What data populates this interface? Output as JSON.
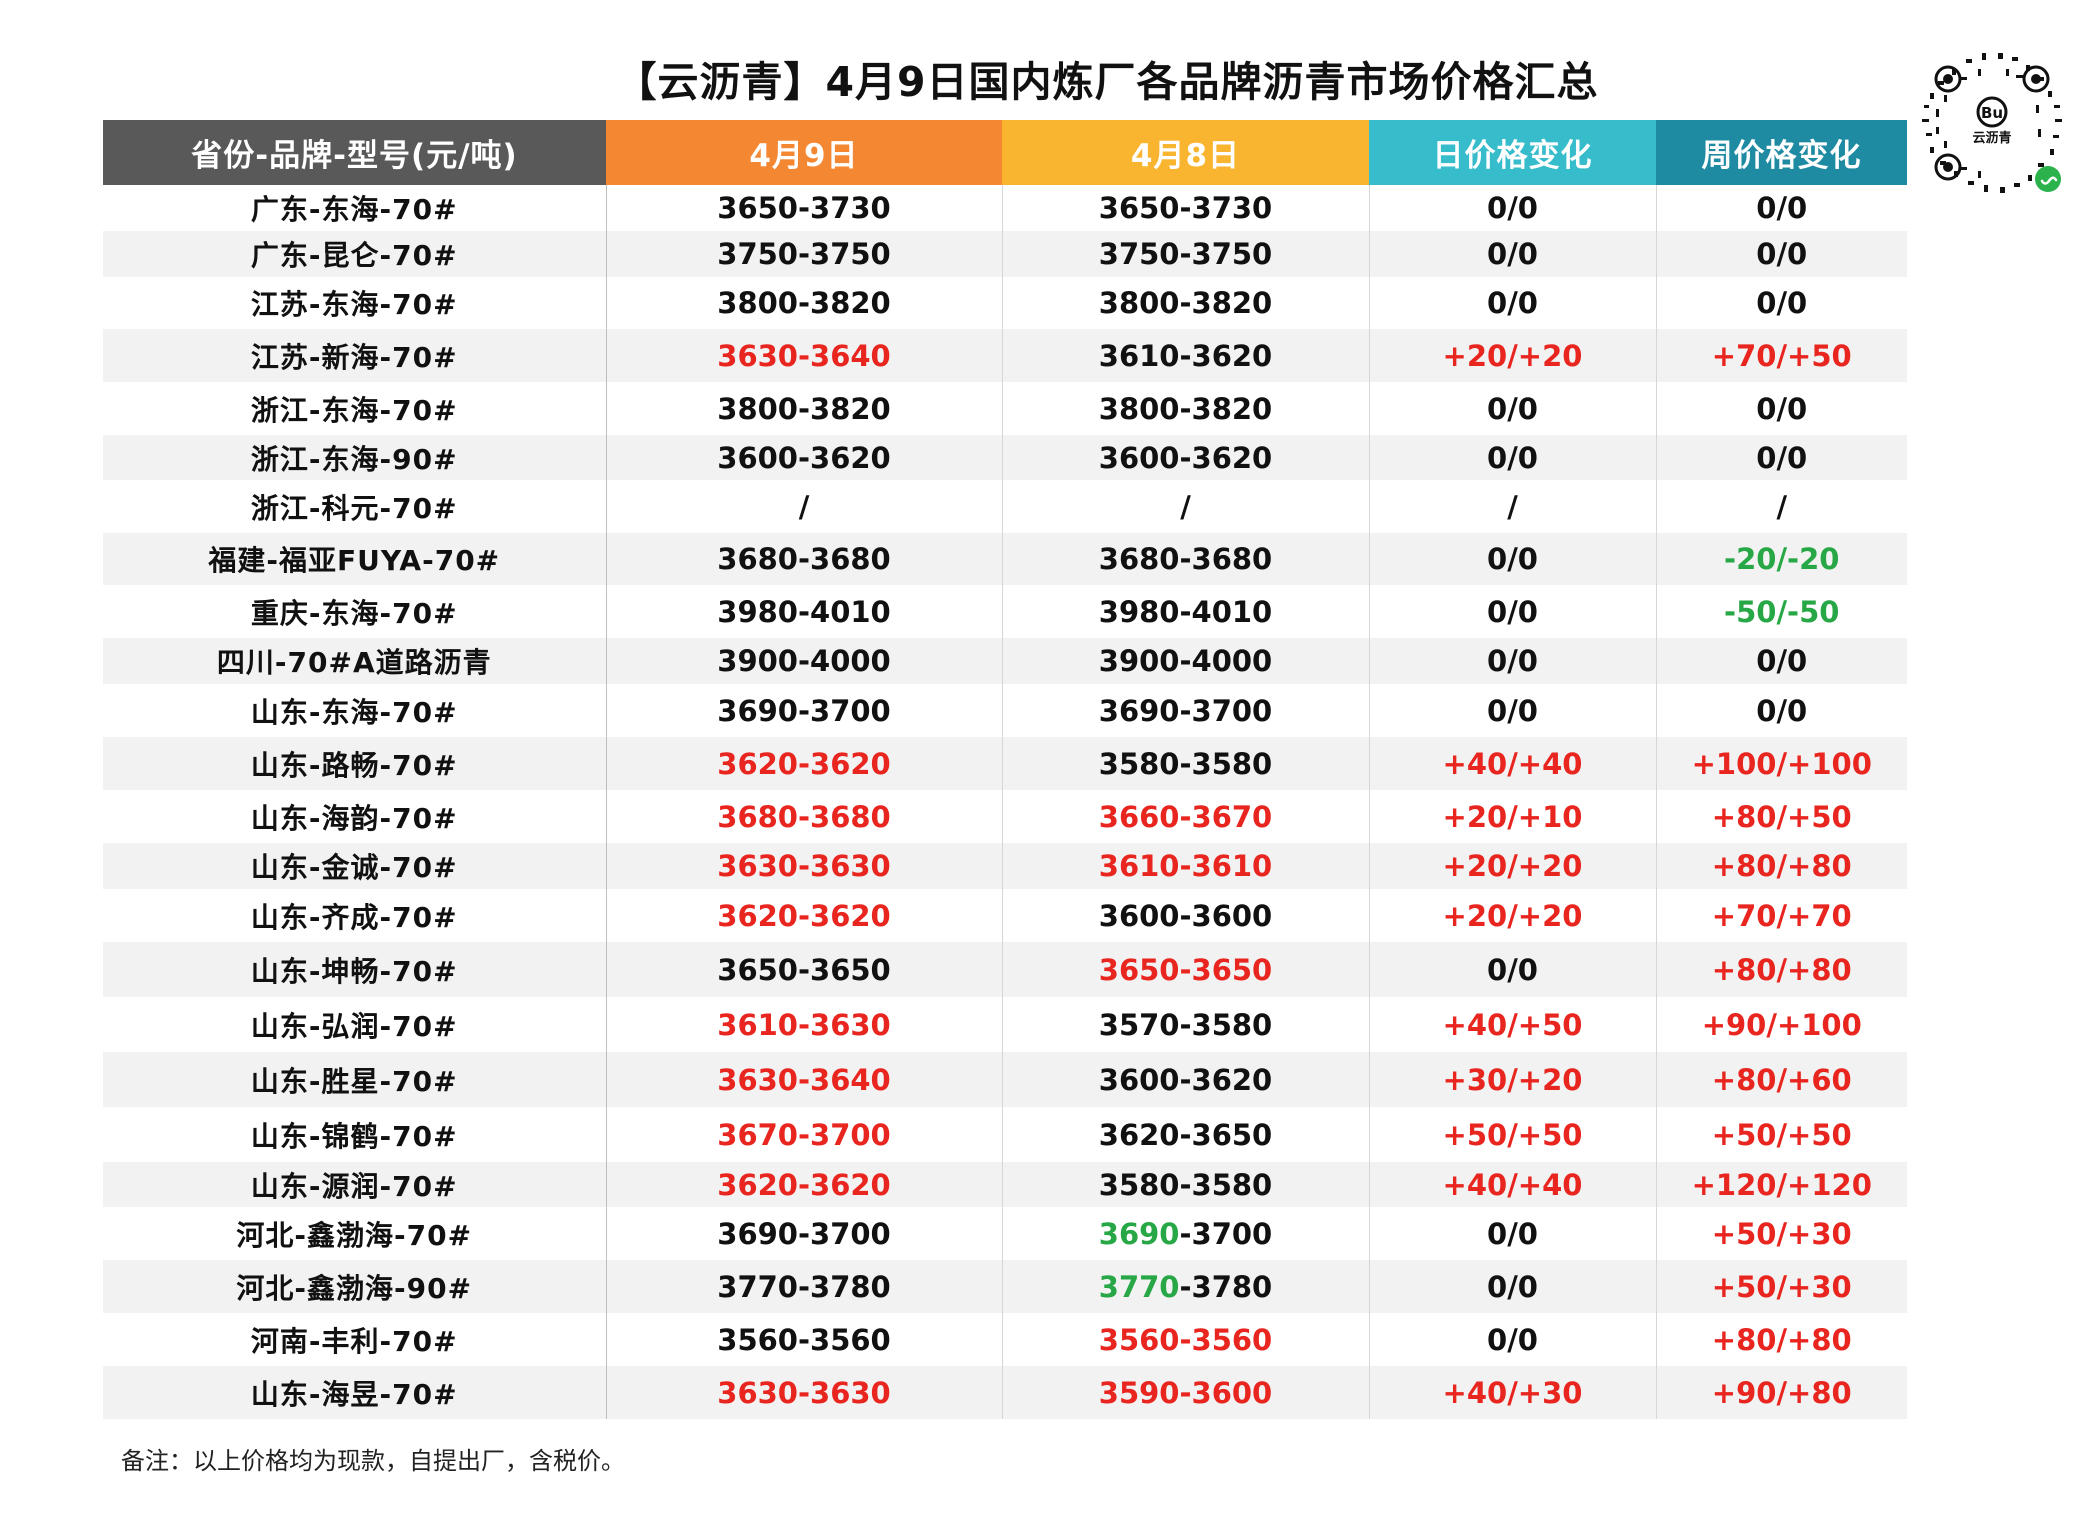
{
  "title": "【云沥青】4月9日国内炼厂各品牌沥青市场价格汇总",
  "qr": {
    "label": "云沥青",
    "logo_text": "Bu",
    "icon": "mini-program-icon"
  },
  "headers": [
    "省份-品牌-型号(元/吨)",
    "4月9日",
    "4月8日",
    "日价格变化",
    "周价格变化"
  ],
  "rows": [
    {
      "name": "广东-东海-70#",
      "d9": "3650-3730",
      "d9s": "",
      "d8": "3650-3730",
      "d8s": "",
      "d8lo": "",
      "d8hi": "",
      "day": "0/0",
      "days": "",
      "week": "0/0",
      "weeks": "",
      "h": 46
    },
    {
      "name": "广东-昆仑-70#",
      "d9": "3750-3750",
      "d9s": "",
      "d8": "3750-3750",
      "d8s": "",
      "d8lo": "",
      "d8hi": "",
      "day": "0/0",
      "days": "",
      "week": "0/0",
      "weeks": "",
      "h": 46
    },
    {
      "name": "江苏-东海-70#",
      "d9": "3800-3820",
      "d9s": "",
      "d8": "3800-3820",
      "d8s": "",
      "d8lo": "",
      "d8hi": "",
      "day": "0/0",
      "days": "",
      "week": "0/0",
      "weeks": "",
      "h": 52
    },
    {
      "name": "江苏-新海-70#",
      "d9": "3630-3640",
      "d9s": "up",
      "d8": "3610-3620",
      "d8s": "",
      "d8lo": "",
      "d8hi": "",
      "day": "+20/+20",
      "days": "up",
      "week": "+70/+50",
      "weeks": "up",
      "h": 53
    },
    {
      "name": "浙江-东海-70#",
      "d9": "3800-3820",
      "d9s": "",
      "d8": "3800-3820",
      "d8s": "",
      "d8lo": "",
      "d8hi": "",
      "day": "0/0",
      "days": "",
      "week": "0/0",
      "weeks": "",
      "h": 53
    },
    {
      "name": "浙江-东海-90#",
      "d9": "3600-3620",
      "d9s": "",
      "d8": "3600-3620",
      "d8s": "",
      "d8lo": "",
      "d8hi": "",
      "day": "0/0",
      "days": "",
      "week": "0/0",
      "weeks": "",
      "h": 45
    },
    {
      "name": "浙江-科元-70#",
      "d9": "/",
      "d9s": "",
      "d8": "/",
      "d8s": "",
      "d8lo": "",
      "d8hi": "",
      "day": "/",
      "days": "",
      "week": "/",
      "weeks": "",
      "h": 53
    },
    {
      "name": "福建-福亚FUYA-70#",
      "d9": "3680-3680",
      "d9s": "",
      "d8": "3680-3680",
      "d8s": "",
      "d8lo": "",
      "d8hi": "",
      "day": "0/0",
      "days": "",
      "week": "-20/-20",
      "weeks": "down",
      "h": 52
    },
    {
      "name": "重庆-东海-70#",
      "d9": "3980-4010",
      "d9s": "",
      "d8": "3980-4010",
      "d8s": "",
      "d8lo": "",
      "d8hi": "",
      "day": "0/0",
      "days": "",
      "week": "-50/-50",
      "weeks": "down",
      "h": 53
    },
    {
      "name": "四川-70#A道路沥青",
      "d9": "3900-4000",
      "d9s": "",
      "d8": "3900-4000",
      "d8s": "",
      "d8lo": "",
      "d8hi": "",
      "day": "0/0",
      "days": "",
      "week": "0/0",
      "weeks": "",
      "h": 46
    },
    {
      "name": "山东-东海-70#",
      "d9": "3690-3700",
      "d9s": "",
      "d8": "3690-3700",
      "d8s": "",
      "d8lo": "",
      "d8hi": "",
      "day": "0/0",
      "days": "",
      "week": "0/0",
      "weeks": "",
      "h": 53
    },
    {
      "name": "山东-路畅-70#",
      "d9": "3620-3620",
      "d9s": "up",
      "d8": "3580-3580",
      "d8s": "",
      "d8lo": "",
      "d8hi": "",
      "day": "+40/+40",
      "days": "up",
      "week": "+100/+100",
      "weeks": "up",
      "h": 53
    },
    {
      "name": "山东-海韵-70#",
      "d9": "3680-3680",
      "d9s": "up",
      "d8": "3660-3670",
      "d8s": "up",
      "d8lo": "",
      "d8hi": "",
      "day": "+20/+10",
      "days": "up",
      "week": "+80/+50",
      "weeks": "up",
      "h": 53
    },
    {
      "name": "山东-金诚-70#",
      "d9": "3630-3630",
      "d9s": "up",
      "d8": "3610-3610",
      "d8s": "up",
      "d8lo": "",
      "d8hi": "",
      "day": "+20/+20",
      "days": "up",
      "week": "+80/+80",
      "weeks": "up",
      "h": 46
    },
    {
      "name": "山东-齐成-70#",
      "d9": "3620-3620",
      "d9s": "up",
      "d8": "3600-3600",
      "d8s": "",
      "d8lo": "",
      "d8hi": "",
      "day": "+20/+20",
      "days": "up",
      "week": "+70/+70",
      "weeks": "up",
      "h": 53
    },
    {
      "name": "山东-坤畅-70#",
      "d9": "3650-3650",
      "d9s": "",
      "d8": "3650-3650",
      "d8s": "up",
      "d8lo": "",
      "d8hi": "",
      "day": "0/0",
      "days": "",
      "week": "+80/+80",
      "weeks": "up",
      "h": 55
    },
    {
      "name": "山东-弘润-70#",
      "d9": "3610-3630",
      "d9s": "up",
      "d8": "3570-3580",
      "d8s": "",
      "d8lo": "",
      "d8hi": "",
      "day": "+40/+50",
      "days": "up",
      "week": "+90/+100",
      "weeks": "up",
      "h": 55
    },
    {
      "name": "山东-胜星-70#",
      "d9": "3630-3640",
      "d9s": "up",
      "d8": "3600-3620",
      "d8s": "",
      "d8lo": "",
      "d8hi": "",
      "day": "+30/+20",
      "days": "up",
      "week": "+80/+60",
      "weeks": "up",
      "h": 55
    },
    {
      "name": "山东-锦鹤-70#",
      "d9": "3670-3700",
      "d9s": "up",
      "d8": "3620-3650",
      "d8s": "",
      "d8lo": "",
      "d8hi": "",
      "day": "+50/+50",
      "days": "up",
      "week": "+50/+50",
      "weeks": "up",
      "h": 55
    },
    {
      "name": "山东-源润-70#",
      "d9": "3620-3620",
      "d9s": "up",
      "d8": "3580-3580",
      "d8s": "",
      "d8lo": "",
      "d8hi": "",
      "day": "+40/+40",
      "days": "up",
      "week": "+120/+120",
      "weeks": "up",
      "h": 45
    },
    {
      "name": "河北-鑫渤海-70#",
      "d9": "3690-3700",
      "d9s": "",
      "d8": "",
      "d8s": "",
      "d8lo": "3690",
      "d8hi": "-3700",
      "day": "0/0",
      "days": "",
      "week": "+50/+30",
      "weeks": "up",
      "h": 53
    },
    {
      "name": "河北-鑫渤海-90#",
      "d9": "3770-3780",
      "d9s": "",
      "d8": "",
      "d8s": "",
      "d8lo": "3770",
      "d8hi": "-3780",
      "day": "0/0",
      "days": "",
      "week": "+50/+30",
      "weeks": "up",
      "h": 53
    },
    {
      "name": "河南-丰利-70#",
      "d9": "3560-3560",
      "d9s": "",
      "d8": "3560-3560",
      "d8s": "up",
      "d8lo": "",
      "d8hi": "",
      "day": "0/0",
      "days": "",
      "week": "+80/+80",
      "weeks": "up",
      "h": 53
    },
    {
      "name": "山东-海昱-70#",
      "d9": "3630-3630",
      "d9s": "up",
      "d8": "3590-3600",
      "d8s": "up",
      "d8lo": "",
      "d8hi": "",
      "day": "+40/+30",
      "days": "up",
      "week": "+90/+80",
      "weeks": "up",
      "h": 53
    }
  ],
  "note": "备注：以上价格均为现款，自提出厂，含税价。",
  "colors": {
    "up": "#e8251f",
    "down": "#27a745",
    "head_name": "#595959",
    "head_d9": "#f48732",
    "head_d8": "#f9b530",
    "head_day": "#36bccb",
    "head_week": "#1f8ba3"
  }
}
